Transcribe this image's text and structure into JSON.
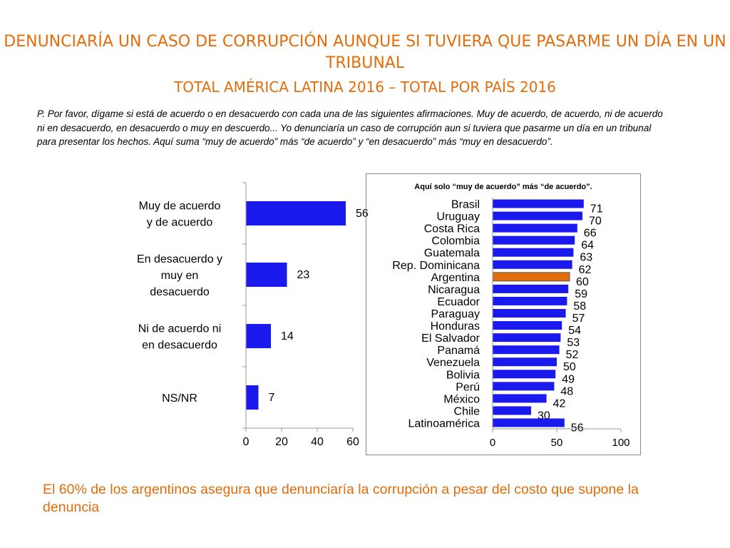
{
  "title": {
    "line1": "DENUNCIARÍA UN CASO DE CORRUPCIÓN AUNQUE SI TUVIERA QUE PASARME UN DÍA EN UN TRIBUNAL",
    "line2": "TOTAL AMÉRICA LATINA 2016 – TOTAL POR PAÍS 2016"
  },
  "question": "P. Por favor, dígame si está de acuerdo o en desacuerdo con cada una de las siguientes afirmaciones. Muy de acuerdo, de acuerdo, ni de acuerdo ni en desacuerdo, en desacuerdo o muy en descuerdo... Yo denunciaría un caso de corrupción aun si tuviera que pasarme un día en un tribunal para presentar los hechos. Aquí suma “muy de acuerdo” más “de acuerdo” y “en desacuerdo” más “muy en desacuerdo”.",
  "conclusion": "El 60% de los argentinos asegura que denunciaría la corrupción a pesar del costo que supone la denuncia",
  "colors": {
    "bar": "#1a1aee",
    "highlight": "#e36c0a",
    "title": "#e36c0a",
    "grid": "#999999"
  },
  "chart_data": [
    {
      "type": "bar",
      "orientation": "horizontal",
      "categories": [
        [
          "Muy de acuerdo",
          "y de acuerdo"
        ],
        [
          "En desacuerdo y",
          "muy en",
          "desacuerdo"
        ],
        [
          "Ni de acuerdo ni",
          "en desacuerdo"
        ],
        [
          "NS/NR"
        ]
      ],
      "values": [
        56,
        23,
        14,
        7
      ],
      "xlim": [
        0,
        60
      ],
      "xticks": [
        0,
        20,
        40,
        60
      ],
      "grid": false
    },
    {
      "type": "bar",
      "orientation": "horizontal",
      "note": "Aquí solo “muy de acuerdo” más “de acuerdo”.",
      "categories": [
        "Brasil",
        "Uruguay",
        "Costa Rica",
        "Colombia",
        "Guatemala",
        "Rep. Dominicana",
        "Argentina",
        "Nicaragua",
        "Ecuador",
        "Paraguay",
        "Honduras",
        "El Salvador",
        "Panamá",
        "Venezuela",
        "Bolivia",
        "Perú",
        "México",
        "Chile",
        "Latinoamérica"
      ],
      "values": [
        71,
        70,
        66,
        64,
        63,
        62,
        60,
        59,
        58,
        57,
        54,
        53,
        52,
        50,
        49,
        48,
        42,
        30,
        56
      ],
      "highlight": "Argentina",
      "xlim": [
        0,
        100
      ],
      "xticks": [
        0,
        50,
        100
      ],
      "grid": false
    }
  ]
}
